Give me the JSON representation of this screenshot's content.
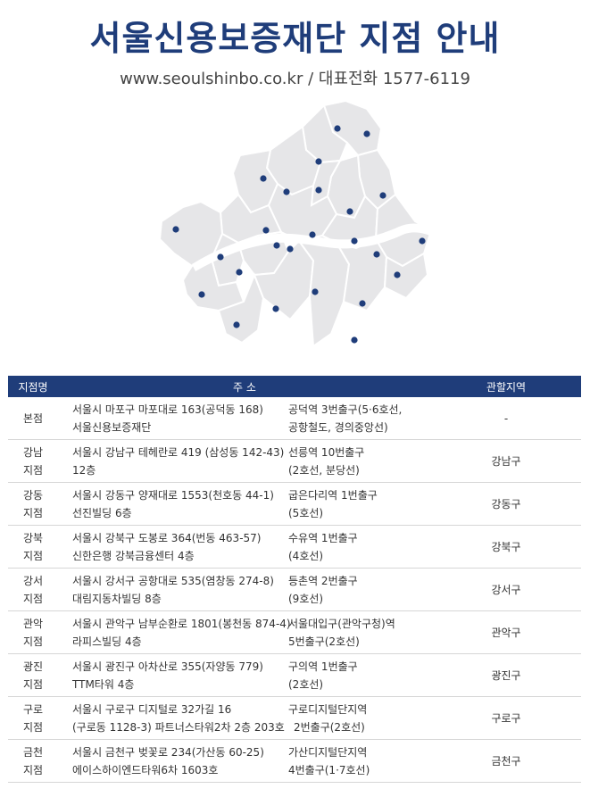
{
  "header": {
    "title": "서울신용보증재단 지점 안내",
    "subtitle": "www.seoulshinbo.co.kr / 대표전화 1577-6119"
  },
  "map": {
    "land_color": "#e6e6e8",
    "border_color": "#ffffff",
    "marker_color": "#1f3d7a",
    "marker_icon": "location-dot-icon"
  },
  "table": {
    "headers": {
      "name": "지점명",
      "address": "주          소",
      "area": "관할지역"
    },
    "rows": [
      {
        "name1": "본점",
        "name2": "",
        "addr1": "서울시 마포구 마포대로 163(공덕동 168)",
        "addr2": "서울신용보증재단",
        "sta1": "공덕역 3번출구(5·6호선,",
        "sta2": "공항철도, 경의중앙선)",
        "area": "-"
      },
      {
        "name1": "강남",
        "name2": "지점",
        "addr1": "서울시 강남구 테헤란로 419 (삼성동 142-43)",
        "addr2": "12층",
        "sta1": "선릉역 10번출구",
        "sta2": "(2호선, 분당선)",
        "area": "강남구"
      },
      {
        "name1": "강동",
        "name2": "지점",
        "addr1": "서울시 강동구 양재대로 1553(천호동 44-1)",
        "addr2": "선진빌딩 6층",
        "sta1": "굽은다리역 1번출구",
        "sta2": "(5호선)",
        "area": "강동구"
      },
      {
        "name1": "강북",
        "name2": "지점",
        "addr1": "서울시 강북구 도봉로 364(번동 463-57)",
        "addr2": "신한은행 강북금융센터 4층",
        "sta1": "수유역 1번출구",
        "sta2": "(4호선)",
        "area": "강북구"
      },
      {
        "name1": "강서",
        "name2": "지점",
        "addr1": "서울시 강서구 공항대로 535(염창동 274-8)",
        "addr2": "대림지동차빌딩 8층",
        "sta1": "등촌역 2번출구",
        "sta2": "(9호선)",
        "area": "강서구"
      },
      {
        "name1": "관악",
        "name2": "지점",
        "addr1": "서울시 관악구 남부순환로 1801(봉천동 874-4)",
        "addr2": "라피스빌딩 4층",
        "sta1": "서울대입구(관악구청)역",
        "sta2": "5번출구(2호선)",
        "area": "관악구"
      },
      {
        "name1": "광진",
        "name2": "지점",
        "addr1": "서울시 광진구 아차산로 355(자양동 779)",
        "addr2": "TTM타워 4층",
        "sta1": "구의역 1번출구",
        "sta2": "(2호선)",
        "area": "광진구"
      },
      {
        "name1": "구로",
        "name2": "지점",
        "addr1": "서울시 구로구 디지털로 32가길 16",
        "addr2": "(구로동 1128-3) 파트너스타워2차 2층 203호",
        "sta1": "구로디지털단지역",
        "sta2": "2번출구(2호선)",
        "area": "구로구"
      },
      {
        "name1": "금천",
        "name2": "지점",
        "addr1": "서울시 금천구 벚꽃로 234(가산동 60-25)",
        "addr2": "에이스하이엔드타워6차 1603호",
        "sta1": "가산디지털단지역",
        "sta2": "4번출구(1·7호선)",
        "area": "금천구"
      }
    ]
  }
}
